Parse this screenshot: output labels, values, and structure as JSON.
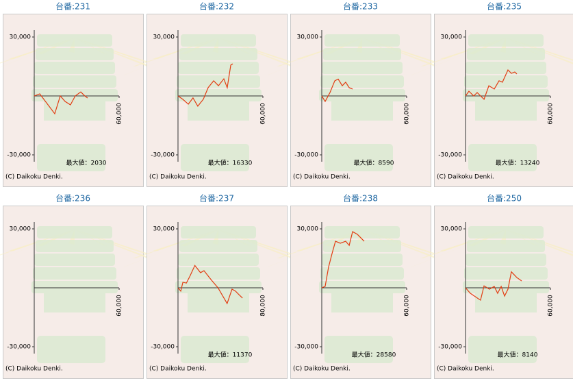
{
  "chart_data": [
    {
      "type": "line",
      "title": "台番:231",
      "annotation": "最大値：2030",
      "copyright": "(C) Daikoku Denki.",
      "color": "#e23c12",
      "xlim": [
        0,
        60000
      ],
      "xticks": [
        {
          "value": 60000,
          "label": "60,000"
        }
      ],
      "ylim": [
        -30000,
        30000
      ],
      "yticks": [
        {
          "value": 30000,
          "label": "30,000"
        },
        {
          "value": -30000,
          "label": "-30,000"
        }
      ],
      "x": [
        0,
        3900,
        14500,
        18400,
        21800,
        25600,
        29000,
        32900,
        35800,
        37700
      ],
      "values": [
        0,
        1050,
        -9070,
        0,
        -2790,
        -4540,
        0,
        2030,
        0,
        -1050
      ]
    },
    {
      "type": "line",
      "title": "台番:232",
      "annotation": "最大値：16330",
      "copyright": "(C) Daikoku Denki.",
      "color": "#e23c12",
      "xlim": [
        0,
        60000
      ],
      "xticks": [
        {
          "value": 60000,
          "label": "60,000"
        }
      ],
      "ylim": [
        -30000,
        30000
      ],
      "yticks": [
        {
          "value": 30000,
          "label": "30,000"
        },
        {
          "value": -30000,
          "label": "-30,000"
        }
      ],
      "x": [
        0,
        3400,
        7300,
        10600,
        14000,
        17900,
        21300,
        25200,
        28600,
        32400,
        34800,
        37300,
        38700
      ],
      "values": [
        0,
        -1700,
        -4200,
        -1000,
        -5200,
        -1700,
        4200,
        7700,
        5200,
        8700,
        4200,
        15700,
        16330
      ]
    },
    {
      "type": "line",
      "title": "台番:233",
      "annotation": "最大値：8590",
      "copyright": "(C) Daikoku Denki.",
      "color": "#e23c12",
      "xlim": [
        0,
        60000
      ],
      "xticks": [
        {
          "value": 60000,
          "label": "60,000"
        }
      ],
      "ylim": [
        -30000,
        30000
      ],
      "yticks": [
        {
          "value": 30000,
          "label": "30,000"
        },
        {
          "value": -30000,
          "label": "-30,000"
        }
      ],
      "x": [
        0,
        2400,
        5800,
        9200,
        11600,
        14500,
        16900,
        19400,
        21800
      ],
      "values": [
        0,
        -2800,
        1700,
        7700,
        8590,
        5200,
        7000,
        4200,
        3500
      ]
    },
    {
      "type": "line",
      "title": "台番:235",
      "annotation": "最大値：13240",
      "copyright": "(C) Daikoku Denki.",
      "color": "#e23c12",
      "xlim": [
        0,
        60000
      ],
      "xticks": [
        {
          "value": 60000,
          "label": "60,000"
        }
      ],
      "ylim": [
        -30000,
        30000
      ],
      "yticks": [
        {
          "value": 30000,
          "label": "30,000"
        },
        {
          "value": -30000,
          "label": "-30,000"
        }
      ],
      "x": [
        0,
        2400,
        5800,
        8200,
        13100,
        16500,
        20300,
        23700,
        26100,
        30000,
        32400,
        34800,
        36300
      ],
      "values": [
        0,
        2400,
        0,
        1700,
        -1700,
        5200,
        3500,
        7700,
        7000,
        13240,
        11500,
        12200,
        11200
      ]
    },
    {
      "type": "line",
      "title": "台番:236",
      "copyright": "(C) Daikoku Denki.",
      "color": "#e23c12",
      "xlim": [
        0,
        60000
      ],
      "xticks": [
        {
          "value": 60000,
          "label": "60,000"
        }
      ],
      "ylim": [
        -30000,
        30000
      ],
      "yticks": [
        {
          "value": 30000,
          "label": "30,000"
        },
        {
          "value": -30000,
          "label": "-30,000"
        }
      ],
      "x": [],
      "values": []
    },
    {
      "type": "line",
      "title": "台番:237",
      "annotation": "最大値：11370",
      "copyright": "(C) Daikoku Denki.",
      "color": "#e23c12",
      "xlim": [
        0,
        80000
      ],
      "xticks": [
        {
          "value": 80000,
          "label": "80,000"
        }
      ],
      "ylim": [
        -30000,
        30000
      ],
      "yticks": [
        {
          "value": 30000,
          "label": "30,000"
        },
        {
          "value": -30000,
          "label": "-30,000"
        }
      ],
      "x": [
        0,
        2600,
        4600,
        7900,
        11200,
        15900,
        21200,
        24500,
        31100,
        37700,
        46300,
        50900,
        54200,
        57500,
        60800
      ],
      "values": [
        0,
        -1700,
        2800,
        2400,
        5900,
        11370,
        7700,
        8700,
        4200,
        0,
        -8000,
        -700,
        -1700,
        -3500,
        -5200
      ]
    },
    {
      "type": "line",
      "title": "台番:238",
      "annotation": "最大値：28580",
      "copyright": "(C) Daikoku Denki.",
      "color": "#e23c12",
      "xlim": [
        0,
        60000
      ],
      "xticks": [
        {
          "value": 60000,
          "label": "60,000"
        }
      ],
      "ylim": [
        -30000,
        30000
      ],
      "yticks": [
        {
          "value": 30000,
          "label": "30,000"
        },
        {
          "value": -30000,
          "label": "-30,000"
        }
      ],
      "x": [
        0,
        2400,
        4800,
        7300,
        9700,
        13100,
        16900,
        19400,
        21800,
        25200,
        30000
      ],
      "values": [
        0,
        700,
        10500,
        17500,
        23700,
        22700,
        23700,
        21600,
        28580,
        27200,
        23700
      ]
    },
    {
      "type": "line",
      "title": "台番:250",
      "annotation": "最大値：8140",
      "copyright": "(C) Daikoku Denki.",
      "color": "#e23c12",
      "xlim": [
        0,
        60000
      ],
      "xticks": [
        {
          "value": 60000,
          "label": "60,000"
        }
      ],
      "ylim": [
        -30000,
        30000
      ],
      "yticks": [
        {
          "value": 30000,
          "label": "30,000"
        },
        {
          "value": -30000,
          "label": "-30,000"
        }
      ],
      "x": [
        0,
        3400,
        10600,
        13100,
        16900,
        20300,
        22700,
        25200,
        27600,
        30000,
        32400,
        36300,
        39700
      ],
      "values": [
        0,
        -2800,
        -6300,
        1000,
        -700,
        700,
        -2800,
        700,
        -4200,
        -700,
        8140,
        5200,
        3500
      ]
    }
  ]
}
